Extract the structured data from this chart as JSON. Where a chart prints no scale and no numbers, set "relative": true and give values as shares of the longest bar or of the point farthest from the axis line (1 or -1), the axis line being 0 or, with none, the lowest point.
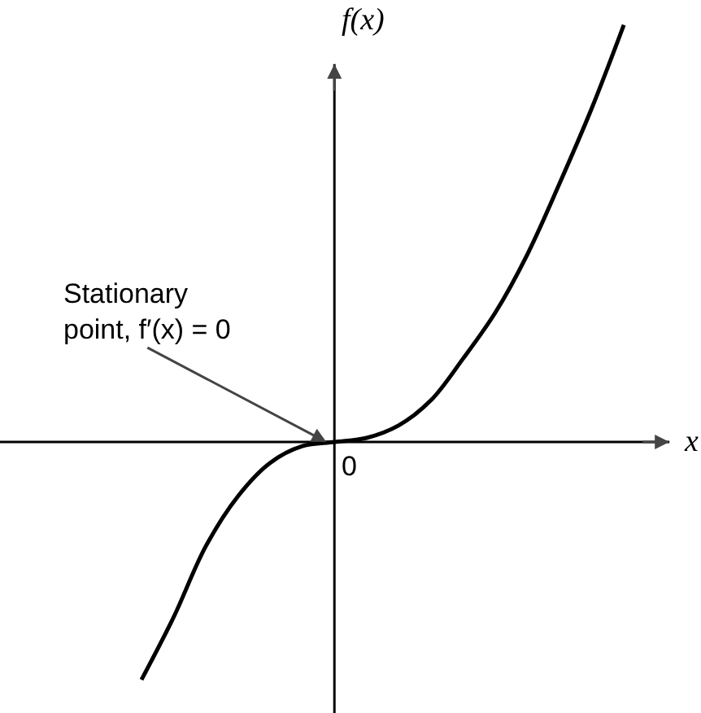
{
  "chart_data": {
    "type": "line",
    "relative": true,
    "xlabel": "x",
    "ylabel": "f(x)",
    "color": "#000000",
    "categories": [
      null,
      null,
      null,
      null,
      null,
      null,
      null,
      null,
      null,
      null,
      null,
      null,
      null,
      null,
      null,
      null
    ],
    "values": [
      -0.57,
      -0.42,
      -0.25,
      -0.13,
      -0.05,
      -0.01,
      0,
      0.01,
      0.04,
      0.1,
      0.2,
      0.31,
      0.45,
      0.62,
      0.8,
      1
    ],
    "annotations": [
      "0",
      "Stationary point, f′(x) = 0"
    ],
    "legend": false
  }
}
